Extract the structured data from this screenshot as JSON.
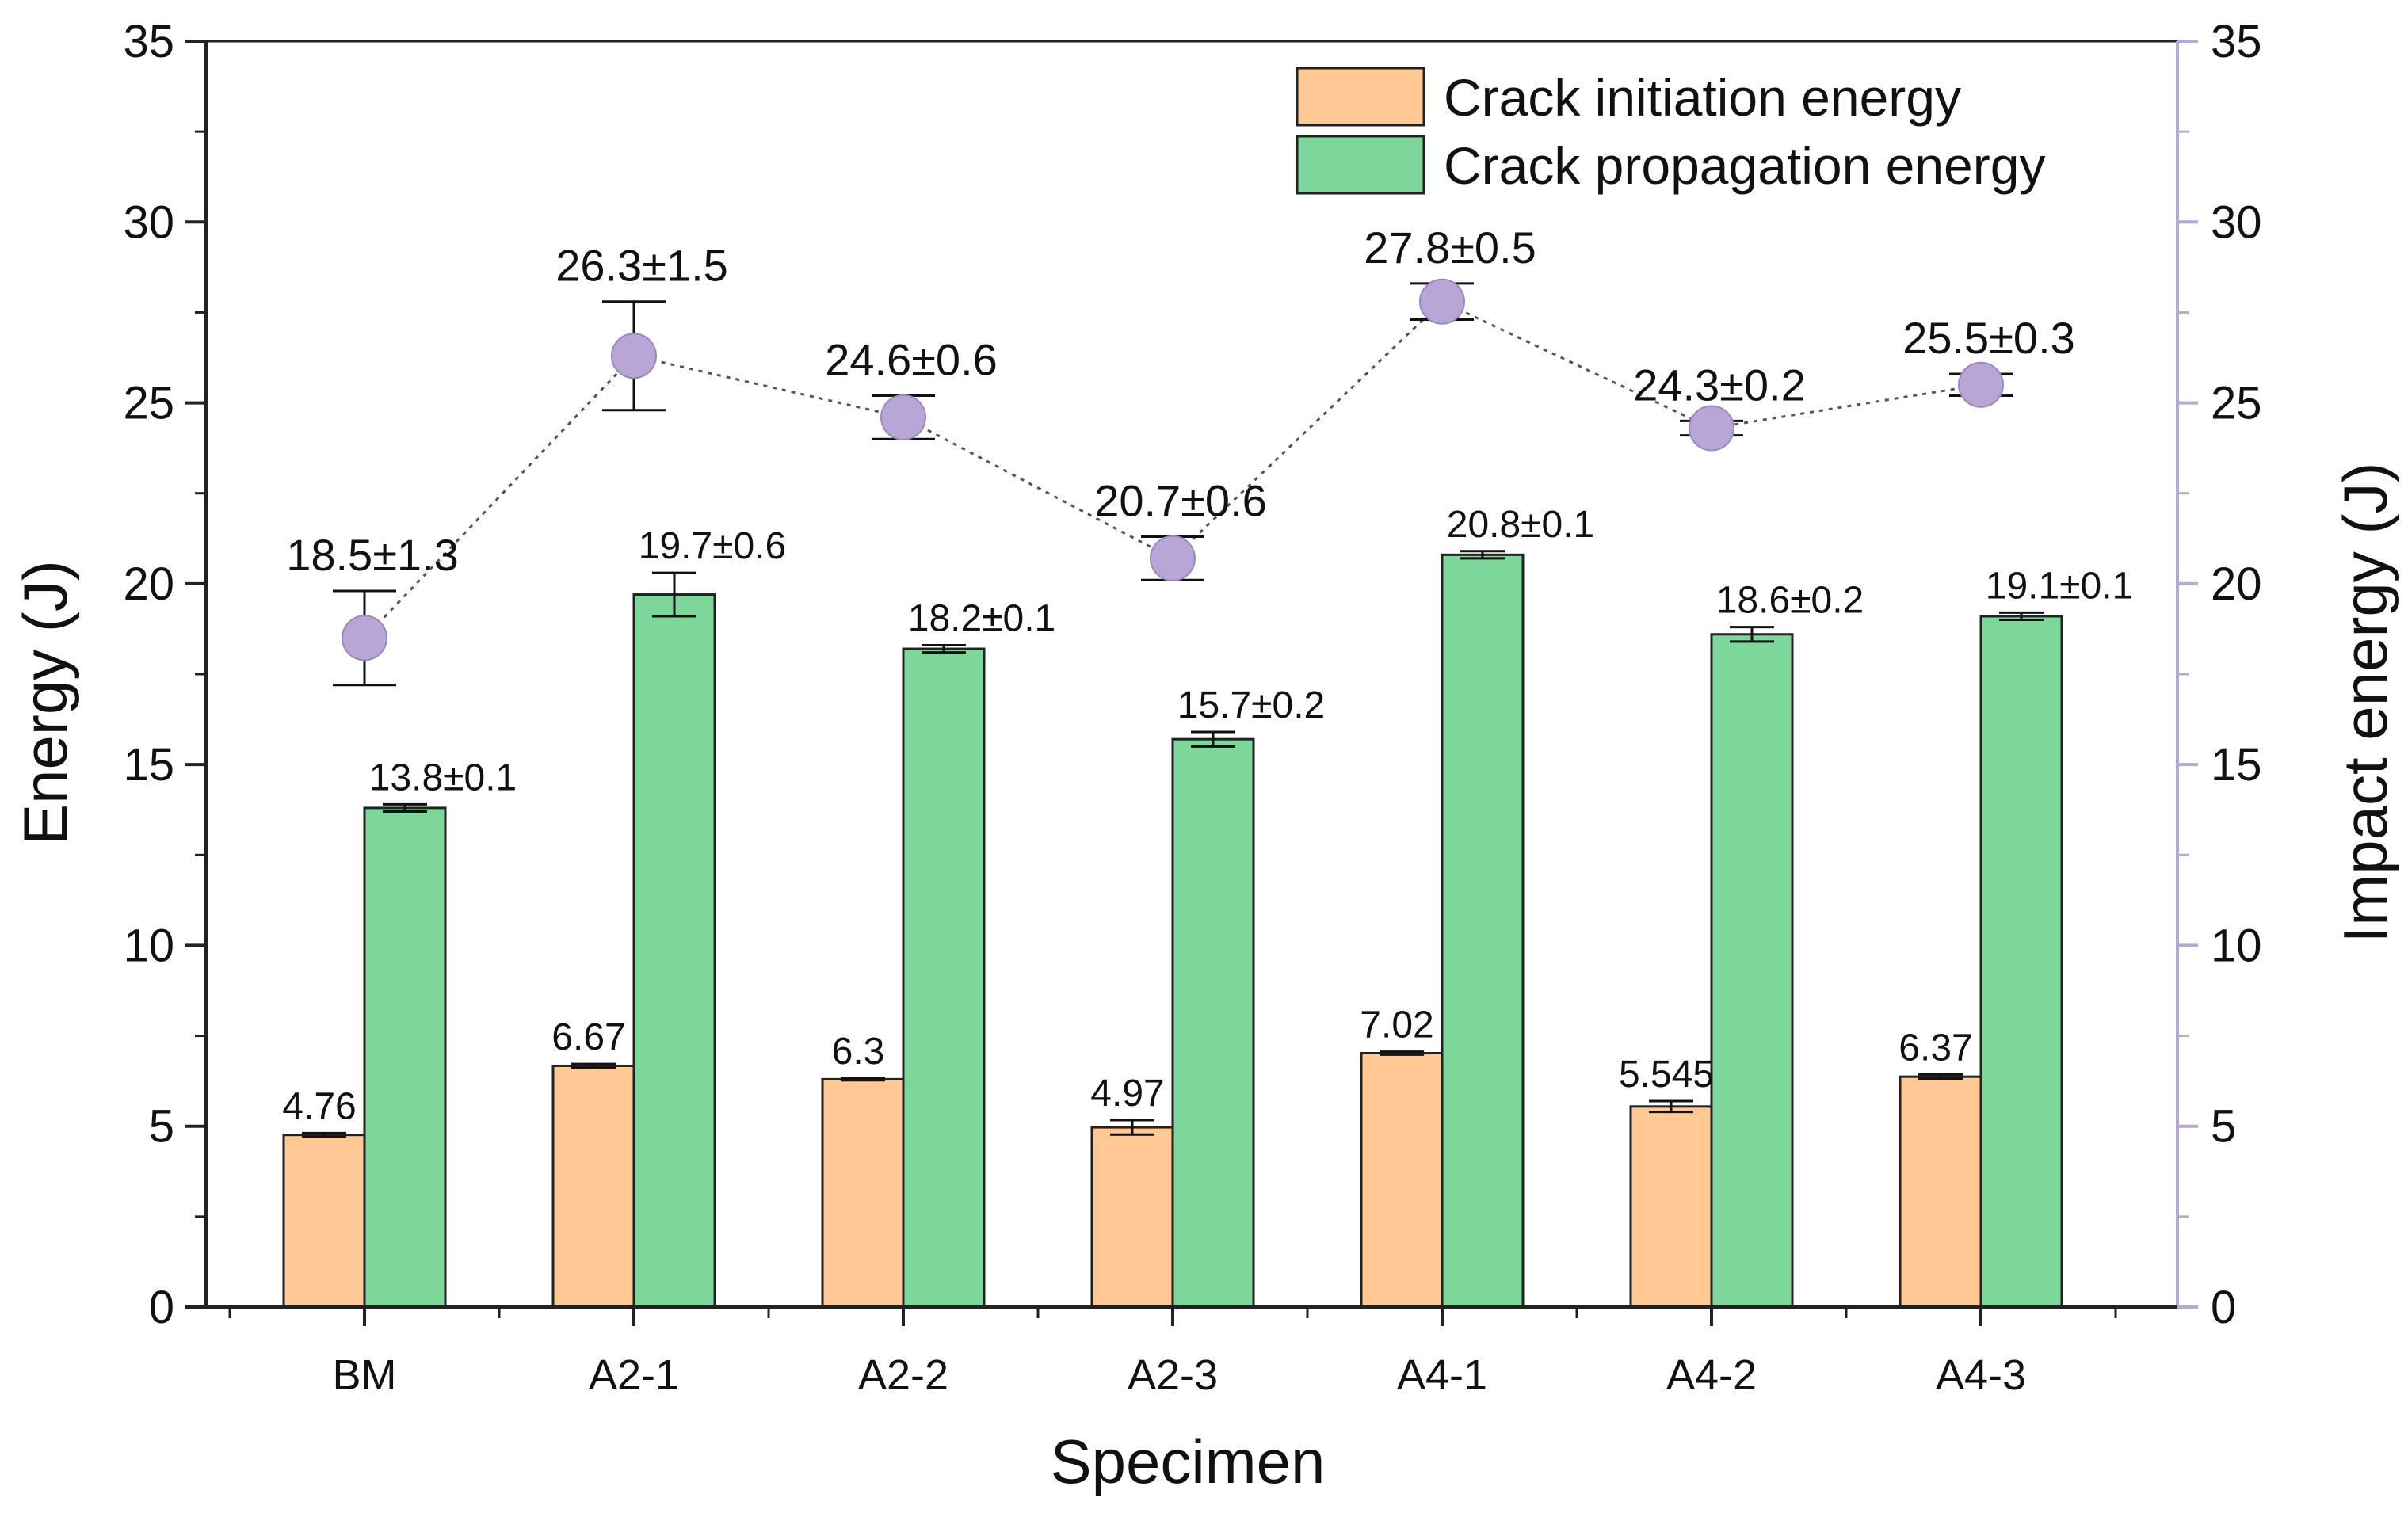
{
  "chart_data": {
    "type": "bar",
    "xlabel": "Specimen",
    "ylabel": "Energy (J)",
    "y2label": "Impact energy (J)",
    "ylim": [
      0,
      35
    ],
    "y2lim": [
      0,
      35
    ],
    "yticks": [
      0,
      5,
      10,
      15,
      20,
      25,
      30,
      35
    ],
    "tick_labels": [
      "0",
      "5",
      "10",
      "15",
      "20",
      "25",
      "30",
      "35"
    ],
    "categories": [
      "BM",
      "A2-1",
      "A2-2",
      "A2-3",
      "A4-1",
      "A4-2",
      "A4-3"
    ],
    "legend_position": "top-right",
    "series": [
      {
        "name": "Crack initiation energy",
        "kind": "bar",
        "color": "#ffc894",
        "values": [
          4.76,
          6.67,
          6.3,
          4.97,
          7.02,
          5.545,
          6.37
        ],
        "errors": [
          0.05,
          0.05,
          0.03,
          0.2,
          0.04,
          0.15,
          0.06
        ],
        "labels": [
          "4.76",
          "6.67",
          "6.3",
          "4.97",
          "7.02",
          "5.545",
          "6.37"
        ]
      },
      {
        "name": "Crack propagation energy",
        "kind": "bar",
        "color": "#7dd69a",
        "values": [
          13.8,
          19.7,
          18.2,
          15.7,
          20.8,
          18.6,
          19.1
        ],
        "errors": [
          0.1,
          0.6,
          0.1,
          0.2,
          0.1,
          0.2,
          0.1
        ],
        "labels": [
          "13.8±0.1",
          "19.7±0.6",
          "18.2±0.1",
          "15.7±0.2",
          "20.8±0.1",
          "18.6±0.2",
          "19.1±0.1"
        ]
      },
      {
        "name": "Impact energy",
        "kind": "line",
        "axis": "right",
        "color": "#b8a6d6",
        "values": [
          18.5,
          26.3,
          24.6,
          20.7,
          27.8,
          24.3,
          25.5
        ],
        "errors": [
          1.3,
          1.5,
          0.6,
          0.6,
          0.5,
          0.2,
          0.3
        ],
        "labels": [
          "18.5±1.3",
          "26.3±1.5",
          "24.6±0.6",
          "20.7±0.6",
          "27.8±0.5",
          "24.3±0.2",
          "25.5±0.3"
        ]
      }
    ]
  }
}
